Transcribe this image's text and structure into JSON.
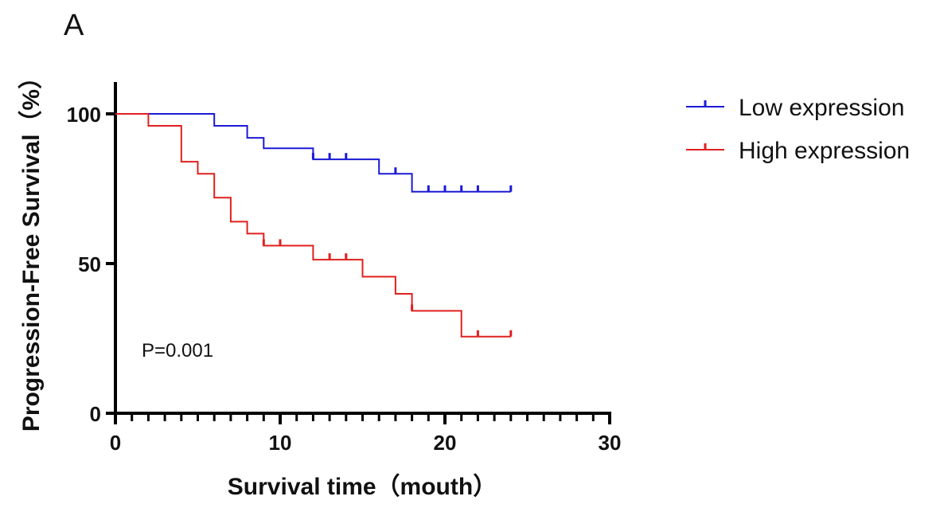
{
  "panel_label": "A",
  "chart_data": {
    "type": "line",
    "subtype": "kaplan-meier",
    "xlabel": "Survival time（mouth）",
    "ylabel": "Progression-Free Survival（%）",
    "xlim": [
      0,
      30
    ],
    "ylim": [
      0,
      100
    ],
    "xticks": [
      0,
      10,
      20,
      30
    ],
    "yticks": [
      0,
      50,
      100
    ],
    "x_minor_step": 1,
    "legend_position": "top-right",
    "annotation": "P=0.001",
    "series": [
      {
        "name": "Low expression",
        "color": "#1a1ad6",
        "steps": [
          [
            0,
            100
          ],
          [
            6,
            96
          ],
          [
            8,
            92
          ],
          [
            9,
            88.5
          ],
          [
            12,
            84.8
          ],
          [
            16,
            80
          ],
          [
            18,
            74
          ]
        ],
        "end_x": 24,
        "censored": [
          [
            12,
            84.8
          ],
          [
            13,
            84.8
          ],
          [
            14,
            84.8
          ],
          [
            17,
            80
          ],
          [
            19,
            74
          ],
          [
            20,
            74
          ],
          [
            21,
            74
          ],
          [
            22,
            74
          ],
          [
            24,
            74
          ]
        ]
      },
      {
        "name": "High expression",
        "color": "#e0201f",
        "steps": [
          [
            0,
            100
          ],
          [
            2,
            96
          ],
          [
            4,
            84
          ],
          [
            5,
            80
          ],
          [
            6,
            72
          ],
          [
            7,
            64
          ],
          [
            8,
            60
          ],
          [
            9,
            56
          ],
          [
            12,
            51.3
          ],
          [
            15,
            45.6
          ],
          [
            17,
            39.9
          ],
          [
            18,
            34.2
          ],
          [
            21,
            25.6
          ]
        ],
        "end_x": 24,
        "censored": [
          [
            9,
            56
          ],
          [
            10,
            56
          ],
          [
            13,
            51.3
          ],
          [
            14,
            51.3
          ],
          [
            18,
            34.2
          ],
          [
            22,
            25.6
          ],
          [
            24,
            25.6
          ]
        ]
      }
    ]
  }
}
